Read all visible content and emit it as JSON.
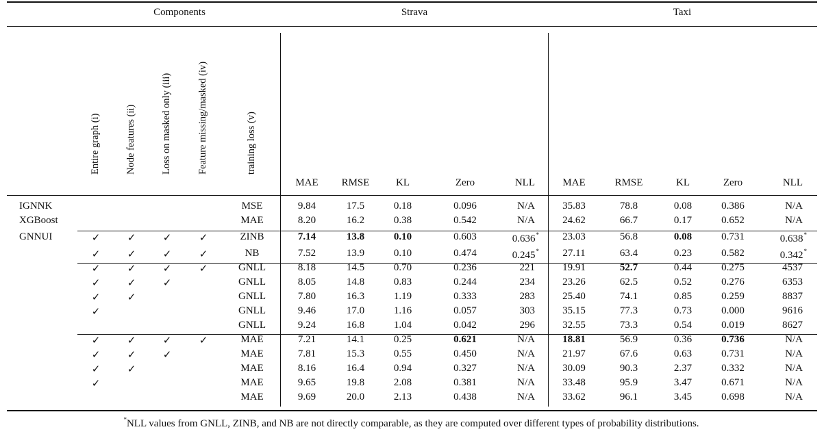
{
  "groups": {
    "components": "Components",
    "strava": "Strava",
    "taxi": "Taxi"
  },
  "component_headers": [
    "Entire graph (i)",
    "Node features (ii)",
    "Loss on masked only (iii)",
    "Feature missing/masked (iv)",
    "training loss (v)"
  ],
  "metrics": [
    "MAE",
    "RMSE",
    "KL",
    "Zero",
    "NLL"
  ],
  "check_mark": "✓",
  "note_mark": "*",
  "rows": [
    {
      "method": "IGNNK",
      "checks": [
        false,
        false,
        false,
        false
      ],
      "loss": "MSE",
      "strava": [
        "9.84",
        "17.5",
        "0.18",
        "0.096",
        "N/A"
      ],
      "taxi": [
        "35.83",
        "78.8",
        "0.08",
        "0.386",
        "N/A"
      ],
      "strava_bold": [],
      "taxi_bold": [],
      "strava_note": [],
      "taxi_note": []
    },
    {
      "method": "XGBoost",
      "checks": [
        false,
        false,
        false,
        false
      ],
      "loss": "MAE",
      "strava": [
        "8.20",
        "16.2",
        "0.38",
        "0.542",
        "N/A"
      ],
      "taxi": [
        "24.62",
        "66.7",
        "0.17",
        "0.652",
        "N/A"
      ],
      "strava_bold": [],
      "taxi_bold": [],
      "strava_note": [],
      "taxi_note": []
    },
    {
      "method": "GNNUI",
      "checks": [
        true,
        true,
        true,
        true
      ],
      "loss": "ZINB",
      "strava": [
        "7.14",
        "13.8",
        "0.10",
        "0.603",
        "0.636"
      ],
      "taxi": [
        "23.03",
        "56.8",
        "0.08",
        "0.731",
        "0.638"
      ],
      "strava_bold": [
        0,
        1,
        2
      ],
      "taxi_bold": [
        2
      ],
      "strava_note": [
        4
      ],
      "taxi_note": [
        4
      ]
    },
    {
      "method": "",
      "checks": [
        true,
        true,
        true,
        true
      ],
      "loss": "NB",
      "strava": [
        "7.52",
        "13.9",
        "0.10",
        "0.474",
        "0.245"
      ],
      "taxi": [
        "27.11",
        "63.4",
        "0.23",
        "0.582",
        "0.342"
      ],
      "strava_bold": [],
      "taxi_bold": [],
      "strava_note": [
        4
      ],
      "taxi_note": [
        4
      ]
    },
    {
      "method": "",
      "checks": [
        true,
        true,
        true,
        true
      ],
      "loss": "GNLL",
      "strava": [
        "8.18",
        "14.5",
        "0.70",
        "0.236",
        "221"
      ],
      "taxi": [
        "19.91",
        "52.7",
        "0.44",
        "0.275",
        "4537"
      ],
      "strava_bold": [],
      "taxi_bold": [
        1
      ],
      "strava_note": [],
      "taxi_note": []
    },
    {
      "method": "",
      "checks": [
        true,
        true,
        true,
        false
      ],
      "loss": "GNLL",
      "strava": [
        "8.05",
        "14.8",
        "0.83",
        "0.244",
        "234"
      ],
      "taxi": [
        "23.26",
        "62.5",
        "0.52",
        "0.276",
        "6353"
      ],
      "strava_bold": [],
      "taxi_bold": [],
      "strava_note": [],
      "taxi_note": []
    },
    {
      "method": "",
      "checks": [
        true,
        true,
        false,
        false
      ],
      "loss": "GNLL",
      "strava": [
        "7.80",
        "16.3",
        "1.19",
        "0.333",
        "283"
      ],
      "taxi": [
        "25.40",
        "74.1",
        "0.85",
        "0.259",
        "8837"
      ],
      "strava_bold": [],
      "taxi_bold": [],
      "strava_note": [],
      "taxi_note": []
    },
    {
      "method": "",
      "checks": [
        true,
        false,
        false,
        false
      ],
      "loss": "GNLL",
      "strava": [
        "9.46",
        "17.0",
        "1.16",
        "0.057",
        "303"
      ],
      "taxi": [
        "35.15",
        "77.3",
        "0.73",
        "0.000",
        "9616"
      ],
      "strava_bold": [],
      "taxi_bold": [],
      "strava_note": [],
      "taxi_note": []
    },
    {
      "method": "",
      "checks": [
        false,
        false,
        false,
        false
      ],
      "loss": "GNLL",
      "strava": [
        "9.24",
        "16.8",
        "1.04",
        "0.042",
        "296"
      ],
      "taxi": [
        "32.55",
        "73.3",
        "0.54",
        "0.019",
        "8627"
      ],
      "strava_bold": [],
      "taxi_bold": [],
      "strava_note": [],
      "taxi_note": []
    },
    {
      "method": "",
      "checks": [
        true,
        true,
        true,
        true
      ],
      "loss": "MAE",
      "strava": [
        "7.21",
        "14.1",
        "0.25",
        "0.621",
        "N/A"
      ],
      "taxi": [
        "18.81",
        "56.9",
        "0.36",
        "0.736",
        "N/A"
      ],
      "strava_bold": [
        3
      ],
      "taxi_bold": [
        0,
        3
      ],
      "strava_note": [],
      "taxi_note": []
    },
    {
      "method": "",
      "checks": [
        true,
        true,
        true,
        false
      ],
      "loss": "MAE",
      "strava": [
        "7.81",
        "15.3",
        "0.55",
        "0.450",
        "N/A"
      ],
      "taxi": [
        "21.97",
        "67.6",
        "0.63",
        "0.731",
        "N/A"
      ],
      "strava_bold": [],
      "taxi_bold": [],
      "strava_note": [],
      "taxi_note": []
    },
    {
      "method": "",
      "checks": [
        true,
        true,
        false,
        false
      ],
      "loss": "MAE",
      "strava": [
        "8.16",
        "16.4",
        "0.94",
        "0.327",
        "N/A"
      ],
      "taxi": [
        "30.09",
        "90.3",
        "2.37",
        "0.332",
        "N/A"
      ],
      "strava_bold": [],
      "taxi_bold": [],
      "strava_note": [],
      "taxi_note": []
    },
    {
      "method": "",
      "checks": [
        true,
        false,
        false,
        false
      ],
      "loss": "MAE",
      "strava": [
        "9.65",
        "19.8",
        "2.08",
        "0.381",
        "N/A"
      ],
      "taxi": [
        "33.48",
        "95.9",
        "3.47",
        "0.671",
        "N/A"
      ],
      "strava_bold": [],
      "taxi_bold": [],
      "strava_note": [],
      "taxi_note": []
    },
    {
      "method": "",
      "checks": [
        false,
        false,
        false,
        false
      ],
      "loss": "MAE",
      "strava": [
        "9.69",
        "20.0",
        "2.13",
        "0.438",
        "N/A"
      ],
      "taxi": [
        "33.62",
        "96.1",
        "3.45",
        "0.698",
        "N/A"
      ],
      "strava_bold": [],
      "taxi_bold": [],
      "strava_note": [],
      "taxi_note": []
    }
  ],
  "footnote": {
    "mark": "*",
    "text": "NLL values from GNLL, ZINB, and NB are not directly comparable, as they are computed over different types of probability distributions."
  }
}
